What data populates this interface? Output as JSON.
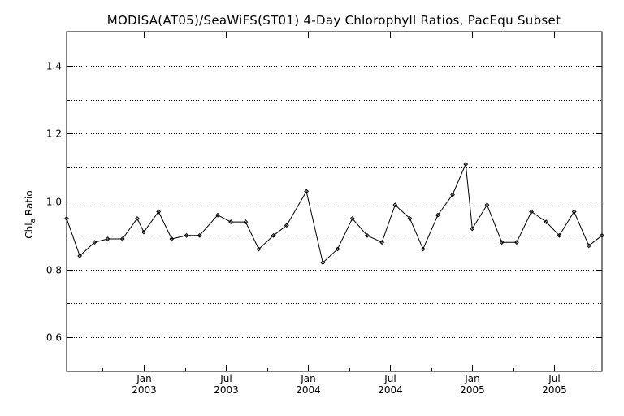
{
  "chart_data": {
    "type": "line",
    "title": "MODISA(AT05)/SeaWiFS(ST01) 4-Day Chlorophyll Ratios, PacEqu Subset",
    "ylabel": {
      "main": "Chl",
      "subscript": "a",
      "suffix": " Ratio"
    },
    "ylim": [
      0.5,
      1.5
    ],
    "y_ticks": [
      0.6,
      0.8,
      1.0,
      1.2,
      1.4
    ],
    "y_tick_labels": [
      "0.6",
      "0.8",
      "1.0",
      "1.2",
      "1.4"
    ],
    "grid": true,
    "x_ticks": [
      {
        "month": "Jan",
        "year": "2003",
        "t": 2003.0
      },
      {
        "month": "Jul",
        "year": "2003",
        "t": 2003.5
      },
      {
        "month": "Jan",
        "year": "2004",
        "t": 2004.0
      },
      {
        "month": "Jul",
        "year": "2004",
        "t": 2004.5
      },
      {
        "month": "Jan",
        "year": "2005",
        "t": 2005.0
      },
      {
        "month": "Jul",
        "year": "2005",
        "t": 2005.5
      }
    ],
    "xlim": [
      2002.53,
      2005.79
    ],
    "x": [
      2002.53,
      2002.61,
      2002.7,
      2002.78,
      2002.87,
      2002.96,
      2003.0,
      2003.09,
      2003.17,
      2003.26,
      2003.34,
      2003.45,
      2003.53,
      2003.62,
      2003.7,
      2003.79,
      2003.87,
      2003.99,
      2004.09,
      2004.18,
      2004.27,
      2004.36,
      2004.45,
      2004.53,
      2004.62,
      2004.7,
      2004.79,
      2004.88,
      2004.96,
      2005.0,
      2005.09,
      2005.18,
      2005.27,
      2005.36,
      2005.45,
      2005.53,
      2005.62,
      2005.71,
      2005.79
    ],
    "values": [
      0.95,
      0.84,
      0.88,
      0.89,
      0.89,
      0.95,
      0.91,
      0.97,
      0.89,
      0.9,
      0.9,
      0.96,
      0.94,
      0.94,
      0.86,
      0.9,
      0.93,
      1.03,
      0.82,
      0.86,
      0.95,
      0.9,
      0.88,
      0.99,
      0.95,
      0.86,
      0.96,
      1.02,
      1.11,
      0.92,
      0.99,
      0.88,
      0.88,
      0.97,
      0.94,
      0.9,
      0.97,
      0.87,
      0.9
    ]
  }
}
